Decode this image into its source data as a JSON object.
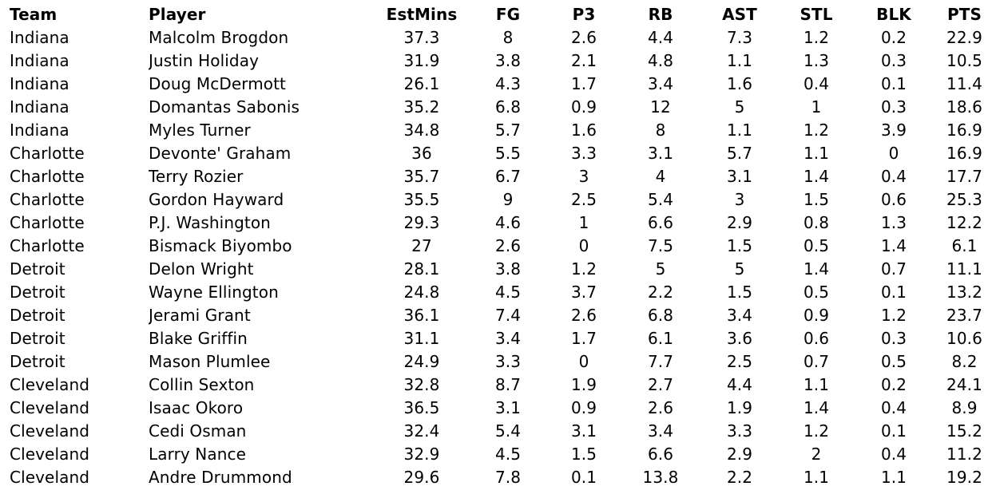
{
  "table": {
    "headers": [
      "Team",
      "Player",
      "EstMins",
      "FG",
      "P3",
      "RB",
      "AST",
      "STL",
      "BLK",
      "PTS"
    ],
    "rows": [
      [
        "Indiana",
        "Malcolm Brogdon",
        "37.3",
        "8",
        "2.6",
        "4.4",
        "7.3",
        "1.2",
        "0.2",
        "22.9"
      ],
      [
        "Indiana",
        "Justin Holiday",
        "31.9",
        "3.8",
        "2.1",
        "4.8",
        "1.1",
        "1.3",
        "0.3",
        "10.5"
      ],
      [
        "Indiana",
        "Doug McDermott",
        "26.1",
        "4.3",
        "1.7",
        "3.4",
        "1.6",
        "0.4",
        "0.1",
        "11.4"
      ],
      [
        "Indiana",
        "Domantas Sabonis",
        "35.2",
        "6.8",
        "0.9",
        "12",
        "5",
        "1",
        "0.3",
        "18.6"
      ],
      [
        "Indiana",
        "Myles Turner",
        "34.8",
        "5.7",
        "1.6",
        "8",
        "1.1",
        "1.2",
        "3.9",
        "16.9"
      ],
      [
        "Charlotte",
        "Devonte' Graham",
        "36",
        "5.5",
        "3.3",
        "3.1",
        "5.7",
        "1.1",
        "0",
        "16.9"
      ],
      [
        "Charlotte",
        "Terry Rozier",
        "35.7",
        "6.7",
        "3",
        "4",
        "3.1",
        "1.4",
        "0.4",
        "17.7"
      ],
      [
        "Charlotte",
        "Gordon Hayward",
        "35.5",
        "9",
        "2.5",
        "5.4",
        "3",
        "1.5",
        "0.6",
        "25.3"
      ],
      [
        "Charlotte",
        "P.J. Washington",
        "29.3",
        "4.6",
        "1",
        "6.6",
        "2.9",
        "0.8",
        "1.3",
        "12.2"
      ],
      [
        "Charlotte",
        "Bismack Biyombo",
        "27",
        "2.6",
        "0",
        "7.5",
        "1.5",
        "0.5",
        "1.4",
        "6.1"
      ],
      [
        "Detroit",
        "Delon Wright",
        "28.1",
        "3.8",
        "1.2",
        "5",
        "5",
        "1.4",
        "0.7",
        "11.1"
      ],
      [
        "Detroit",
        "Wayne Ellington",
        "24.8",
        "4.5",
        "3.7",
        "2.2",
        "1.5",
        "0.5",
        "0.1",
        "13.2"
      ],
      [
        "Detroit",
        "Jerami Grant",
        "36.1",
        "7.4",
        "2.6",
        "6.8",
        "3.4",
        "0.9",
        "1.2",
        "23.7"
      ],
      [
        "Detroit",
        "Blake Griffin",
        "31.1",
        "3.4",
        "1.7",
        "6.1",
        "3.6",
        "0.6",
        "0.3",
        "10.6"
      ],
      [
        "Detroit",
        "Mason Plumlee",
        "24.9",
        "3.3",
        "0",
        "7.7",
        "2.5",
        "0.7",
        "0.5",
        "8.2"
      ],
      [
        "Cleveland",
        "Collin Sexton",
        "32.8",
        "8.7",
        "1.9",
        "2.7",
        "4.4",
        "1.1",
        "0.2",
        "24.1"
      ],
      [
        "Cleveland",
        "Isaac Okoro",
        "36.5",
        "3.1",
        "0.9",
        "2.6",
        "1.9",
        "1.4",
        "0.4",
        "8.9"
      ],
      [
        "Cleveland",
        "Cedi Osman",
        "32.4",
        "5.4",
        "3.1",
        "3.4",
        "3.3",
        "1.2",
        "0.1",
        "15.2"
      ],
      [
        "Cleveland",
        "Larry Nance",
        "32.9",
        "4.5",
        "1.5",
        "6.6",
        "2.9",
        "2",
        "0.4",
        "11.2"
      ],
      [
        "Cleveland",
        "Andre Drummond",
        "29.6",
        "7.8",
        "0.1",
        "13.8",
        "2.2",
        "1.1",
        "1.1",
        "19.2"
      ]
    ]
  }
}
